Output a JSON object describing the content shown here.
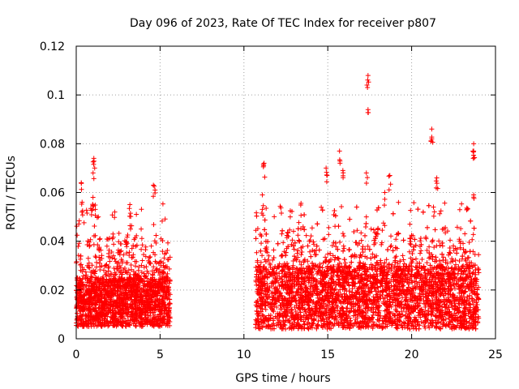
{
  "chart_data": {
    "type": "scatter",
    "title": "Day 096 of 2023, Rate Of TEC Index for receiver p807",
    "xlabel": "GPS time / hours",
    "ylabel": "ROTI / TECUs",
    "xlim": [
      0,
      25
    ],
    "ylim": [
      0,
      0.12
    ],
    "x_ticks": [
      0,
      5,
      10,
      15,
      20,
      25
    ],
    "x_tick_labels": [
      "0",
      "5",
      "10",
      "15",
      "20",
      "25"
    ],
    "y_ticks": [
      0,
      0.02,
      0.04,
      0.06,
      0.08,
      0.1,
      0.12
    ],
    "y_tick_labels": [
      "0",
      "0.02",
      "0.04",
      "0.06",
      "0.08",
      "0.1",
      "0.12"
    ],
    "grid": true,
    "marker": "+",
    "series": [
      {
        "name": "ROTI",
        "color": "#ff0000",
        "segments": [
          {
            "x_range": [
              0.0,
              5.6
            ],
            "base_range": [
              0.005,
              0.025
            ]
          },
          {
            "x_range": [
              10.7,
              24.0
            ],
            "base_range": [
              0.004,
              0.03
            ]
          }
        ],
        "notable_points": [
          {
            "x": 17.4,
            "y": 0.108
          },
          {
            "x": 17.4,
            "y": 0.094
          },
          {
            "x": 21.2,
            "y": 0.086
          },
          {
            "x": 21.2,
            "y": 0.082
          },
          {
            "x": 23.7,
            "y": 0.08
          },
          {
            "x": 23.7,
            "y": 0.077
          },
          {
            "x": 15.7,
            "y": 0.077
          },
          {
            "x": 1.05,
            "y": 0.074
          },
          {
            "x": 1.1,
            "y": 0.07
          },
          {
            "x": 11.2,
            "y": 0.072
          },
          {
            "x": 15.9,
            "y": 0.069
          },
          {
            "x": 14.9,
            "y": 0.07
          },
          {
            "x": 17.3,
            "y": 0.068
          },
          {
            "x": 18.7,
            "y": 0.067
          },
          {
            "x": 21.5,
            "y": 0.066
          },
          {
            "x": 0.3,
            "y": 0.064
          },
          {
            "x": 4.6,
            "y": 0.063
          },
          {
            "x": 4.7,
            "y": 0.061
          },
          {
            "x": 11.1,
            "y": 0.059
          },
          {
            "x": 18.4,
            "y": 0.06
          },
          {
            "x": 1.0,
            "y": 0.058
          },
          {
            "x": 23.7,
            "y": 0.059
          },
          {
            "x": 0.35,
            "y": 0.056
          },
          {
            "x": 3.2,
            "y": 0.055
          },
          {
            "x": 21.3,
            "y": 0.054
          },
          {
            "x": 2.3,
            "y": 0.052
          },
          {
            "x": 17.3,
            "y": 0.05
          },
          {
            "x": 19.9,
            "y": 0.041
          },
          {
            "x": 5.2,
            "y": 0.03
          }
        ]
      }
    ]
  }
}
